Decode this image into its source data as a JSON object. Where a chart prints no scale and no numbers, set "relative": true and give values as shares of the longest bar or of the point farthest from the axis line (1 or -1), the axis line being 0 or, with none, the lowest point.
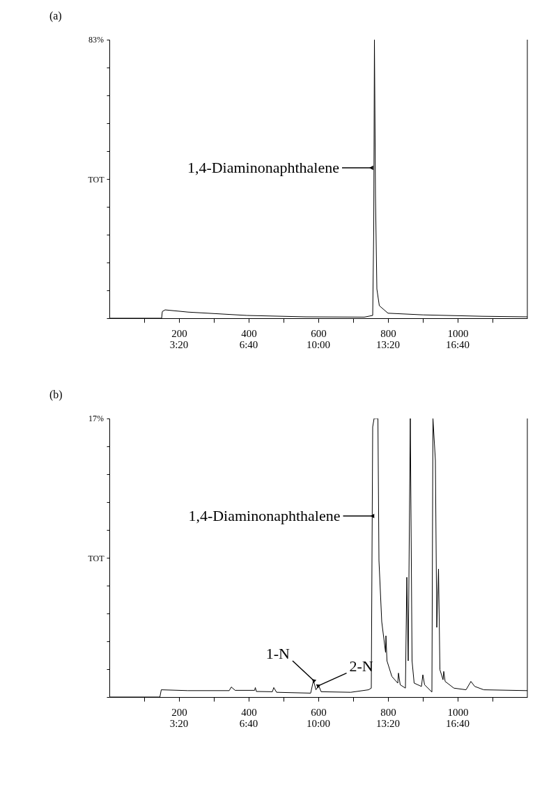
{
  "chart_data": [
    {
      "type": "line",
      "title": "(a)",
      "ylabel": "TOT",
      "relative": true,
      "x": [
        0,
        150,
        152,
        160,
        226,
        395,
        564,
        732,
        756,
        759,
        761,
        764,
        768,
        775,
        800,
        901,
        1070,
        1200
      ],
      "series": [
        {
          "color": "#000000",
          "values": [
            0,
            0,
            0.024,
            0.03,
            0.022,
            0.01,
            0.005,
            0.004,
            0.01,
            0.32,
            1,
            0.44,
            0.105,
            0.045,
            0.018,
            0.012,
            0.007,
            0.005
          ]
        }
      ],
      "xlim": [
        0,
        1200
      ],
      "xticks": [
        {
          "value": 100,
          "label": null
        },
        200,
        {
          "value": 300,
          "label": null
        },
        400,
        {
          "value": 500,
          "label": null
        },
        600,
        {
          "value": 700,
          "label": null
        },
        800,
        {
          "value": 900,
          "label": null
        },
        1000,
        {
          "value": 1100,
          "label": null
        }
      ],
      "x2lim": [
        0,
        1200
      ],
      "x2ticks": [
        {
          "value": 200,
          "label": "3:20"
        },
        {
          "value": 400,
          "label": "6:40"
        },
        {
          "value": 600,
          "label": "10:00"
        },
        {
          "value": 800,
          "label": "13:20"
        },
        {
          "value": 1000,
          "label": "16:40"
        }
      ],
      "annotations": [
        "83%",
        {
          "text": "1,4-Diaminonaphthalene",
          "x": 752,
          "y": 0.54
        }
      ]
    },
    {
      "type": "line",
      "title": "(b)",
      "ylabel": "TOT",
      "relative": true,
      "x": [
        0,
        145,
        149,
        225,
        344,
        350,
        361,
        417,
        419,
        422,
        468,
        472,
        480,
        578,
        586,
        593,
        601,
        608,
        693,
        744,
        752,
        756,
        760,
        771,
        774,
        782,
        793,
        794,
        797,
        811,
        828,
        830,
        835,
        850,
        854,
        858,
        864,
        869,
        875,
        896,
        900,
        905,
        926,
        929,
        936,
        940,
        945,
        949,
        958,
        960,
        964,
        989,
        1024,
        1038,
        1049,
        1075,
        1200
      ],
      "series": [
        {
          "color": "#000000",
          "values": [
            0,
            0,
            0.026,
            0.023,
            0.023,
            0.036,
            0.024,
            0.024,
            0.034,
            0.02,
            0.019,
            0.034,
            0.017,
            0.014,
            0.06,
            0.026,
            0.041,
            0.019,
            0.017,
            0.026,
            0.032,
            0.97,
            1,
            1,
            0.49,
            0.27,
            0.16,
            0.22,
            0.13,
            0.074,
            0.05,
            0.086,
            0.044,
            0.032,
            0.43,
            0.13,
            1,
            0.13,
            0.05,
            0.038,
            0.08,
            0.044,
            0.018,
            1,
            0.85,
            0.25,
            0.46,
            0.098,
            0.062,
            0.092,
            0.056,
            0.032,
            0.026,
            0.056,
            0.038,
            0.026,
            0.023
          ]
        }
      ],
      "xlim": [
        0,
        1200
      ],
      "xticks": [
        {
          "value": 100,
          "label": null
        },
        200,
        {
          "value": 300,
          "label": null
        },
        400,
        {
          "value": 500,
          "label": null
        },
        600,
        {
          "value": 700,
          "label": null
        },
        800,
        {
          "value": 900,
          "label": null
        },
        1000,
        {
          "value": 1100,
          "label": null
        }
      ],
      "x2lim": [
        0,
        1200
      ],
      "x2ticks": [
        {
          "value": 200,
          "label": "3:20"
        },
        {
          "value": 400,
          "label": "6:40"
        },
        {
          "value": 600,
          "label": "10:00"
        },
        {
          "value": 800,
          "label": "13:20"
        },
        {
          "value": 1000,
          "label": "16:40"
        }
      ],
      "annotations": [
        "17%",
        {
          "text": "1,4-Diaminonaphthalene",
          "x": 755,
          "y": 0.65
        },
        {
          "text": "1-N",
          "x": 586,
          "y": 0.06
        },
        {
          "text": "2-N",
          "x": 601,
          "y": 0.041
        }
      ]
    }
  ]
}
